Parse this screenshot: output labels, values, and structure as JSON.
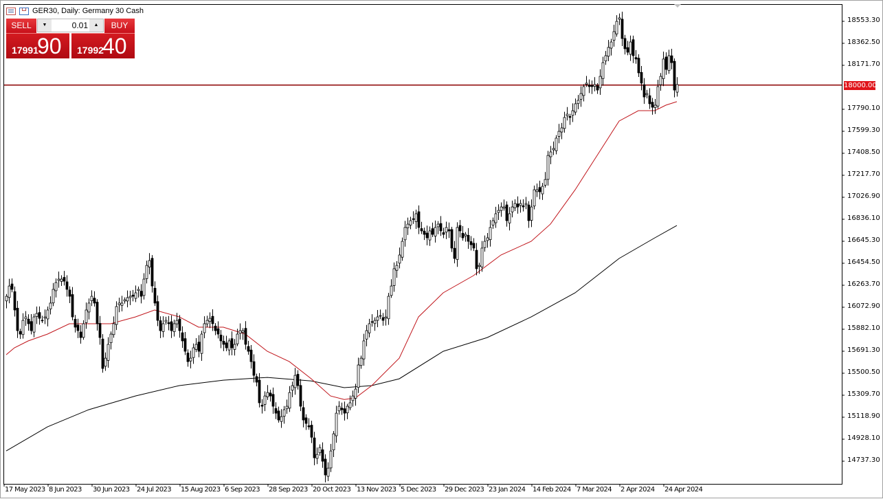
{
  "window": {
    "title": "GER30, Daily:  Germany 30 Cash"
  },
  "trade_panel": {
    "sell_label": "SELL",
    "buy_label": "BUY",
    "lot": "0.01",
    "sell_price_main": "17991",
    "sell_price_big": "90",
    "buy_price_main": "17992",
    "buy_price_big": "40"
  },
  "colors": {
    "bull_body": "#ffffff",
    "bear_body": "#000000",
    "fast_ma": "#c0141a",
    "slow_ma": "#000000",
    "level_line": "#8b0000",
    "accent": "#e0141a"
  },
  "chart_data": {
    "type": "candlestick",
    "symbol": "GER30",
    "timeframe": "Daily",
    "y_ticks": [
      "18553.30",
      "18362.50",
      "18171.70",
      "17790.10",
      "17599.30",
      "17408.50",
      "17217.70",
      "17026.90",
      "16836.10",
      "16645.30",
      "16454.50",
      "16263.70",
      "16072.90",
      "15882.10",
      "15691.30",
      "15500.50",
      "15309.70",
      "15118.90",
      "14928.10",
      "14737.30"
    ],
    "ylim": [
      14546,
      18703
    ],
    "horizontal_level": {
      "value": 18000.0,
      "label": "18000.00"
    },
    "x_ticks": [
      {
        "bar": 0,
        "label": "17 May 2023"
      },
      {
        "bar": 16,
        "label": "8 Jun 2023"
      },
      {
        "bar": 32,
        "label": "30 Jun 2023"
      },
      {
        "bar": 48,
        "label": "24 Jul 2023"
      },
      {
        "bar": 64,
        "label": "15 Aug 2023"
      },
      {
        "bar": 80,
        "label": "6 Sep 2023"
      },
      {
        "bar": 96,
        "label": "28 Sep 2023"
      },
      {
        "bar": 112,
        "label": "20 Oct 2023"
      },
      {
        "bar": 128,
        "label": "13 Nov 2023"
      },
      {
        "bar": 144,
        "label": "5 Dec 2023"
      },
      {
        "bar": 160,
        "label": "29 Dec 2023"
      },
      {
        "bar": 176,
        "label": "23 Jan 2024"
      },
      {
        "bar": 192,
        "label": "14 Feb 2024"
      },
      {
        "bar": 208,
        "label": "7 Mar 2024"
      },
      {
        "bar": 224,
        "label": "2 Apr 2024"
      },
      {
        "bar": 240,
        "label": "24 Apr 2024"
      }
    ],
    "closes": [
      16168,
      16257,
      16228,
      16049,
      15870,
      15840,
      15959,
      15989,
      15930,
      15870,
      15989,
      16019,
      15977,
      15959,
      15989,
      16049,
      16109,
      16228,
      16287,
      16317,
      16317,
      16299,
      16228,
      16168,
      15989,
      15900,
      15870,
      15810,
      15930,
      16049,
      16109,
      16168,
      16109,
      15930,
      15810,
      15542,
      15631,
      15751,
      15840,
      15930,
      16079,
      16109,
      16109,
      16138,
      16156,
      16168,
      16168,
      16198,
      16228,
      16168,
      16317,
      16436,
      16478,
      16257,
      16109,
      15959,
      15870,
      15930,
      15959,
      15930,
      15870,
      15930,
      15959,
      15870,
      15781,
      15691,
      15601,
      15631,
      15721,
      15751,
      15691,
      15840,
      15930,
      15959,
      15977,
      15930,
      15870,
      15840,
      15781,
      15751,
      15721,
      15781,
      15721,
      15751,
      15840,
      15870,
      15870,
      15751,
      15691,
      15601,
      15482,
      15423,
      15244,
      15214,
      15303,
      15333,
      15303,
      15214,
      15154,
      15095,
      15124,
      15184,
      15214,
      15333,
      15393,
      15482,
      15393,
      15214,
      15095,
      15065,
      15035,
      14945,
      14767,
      14796,
      14856,
      14737,
      14618,
      14677,
      14826,
      14975,
      15154,
      15214,
      15184,
      15154,
      15214,
      15244,
      15303,
      15363,
      15572,
      15631,
      15781,
      15870,
      15930,
      15942,
      15959,
      15989,
      16001,
      15959,
      15989,
      16168,
      16257,
      16407,
      16436,
      16526,
      16645,
      16765,
      16794,
      16824,
      16836,
      16884,
      16765,
      16735,
      16705,
      16675,
      16735,
      16705,
      16765,
      16794,
      16735,
      16705,
      16765,
      16735,
      16586,
      16496,
      16765,
      16735,
      16675,
      16705,
      16645,
      16615,
      16586,
      16407,
      16436,
      16586,
      16645,
      16675,
      16765,
      16824,
      16884,
      16913,
      16943,
      16943,
      16824,
      16884,
      16943,
      16973,
      16943,
      16973,
      16943,
      16973,
      16824,
      16943,
      17092,
      17092,
      17074,
      17122,
      17181,
      17390,
      17420,
      17450,
      17540,
      17599,
      17629,
      17719,
      17748,
      17719,
      17778,
      17838,
      17868,
      17927,
      17987,
      18017,
      17987,
      17987,
      18005,
      17957,
      18076,
      18195,
      18255,
      18327,
      18374,
      18464,
      18553,
      18583,
      18404,
      18315,
      18285,
      18374,
      18255,
      18226,
      18106,
      18017,
      17897,
      17927,
      17838,
      17808,
      17826,
      17987,
      18076,
      18226,
      18136,
      18255,
      18195,
      17957,
      18005
    ],
    "fast_ma": [
      [
        0,
        15661
      ],
      [
        3,
        15721
      ],
      [
        8,
        15781
      ],
      [
        15,
        15840
      ],
      [
        23,
        15930
      ],
      [
        30,
        15930
      ],
      [
        38,
        15930
      ],
      [
        47,
        15989
      ],
      [
        54,
        16049
      ],
      [
        63,
        15989
      ],
      [
        70,
        15900
      ],
      [
        79,
        15900
      ],
      [
        87,
        15840
      ],
      [
        95,
        15691
      ],
      [
        103,
        15601
      ],
      [
        111,
        15452
      ],
      [
        118,
        15303
      ],
      [
        123,
        15273
      ],
      [
        127,
        15285
      ],
      [
        133,
        15393
      ],
      [
        143,
        15631
      ],
      [
        150,
        15989
      ],
      [
        159,
        16198
      ],
      [
        170,
        16347
      ],
      [
        180,
        16526
      ],
      [
        191,
        16645
      ],
      [
        198,
        16794
      ],
      [
        207,
        17092
      ],
      [
        215,
        17390
      ],
      [
        223,
        17688
      ],
      [
        230,
        17778
      ],
      [
        236,
        17778
      ],
      [
        240,
        17826
      ],
      [
        244,
        17856
      ]
    ],
    "slow_ma": [
      [
        0,
        14826
      ],
      [
        15,
        15035
      ],
      [
        30,
        15184
      ],
      [
        47,
        15303
      ],
      [
        63,
        15393
      ],
      [
        79,
        15440
      ],
      [
        95,
        15464
      ],
      [
        111,
        15434
      ],
      [
        123,
        15375
      ],
      [
        133,
        15393
      ],
      [
        143,
        15452
      ],
      [
        159,
        15691
      ],
      [
        175,
        15810
      ],
      [
        191,
        15989
      ],
      [
        207,
        16198
      ],
      [
        223,
        16496
      ],
      [
        236,
        16675
      ],
      [
        244,
        16782
      ]
    ]
  }
}
